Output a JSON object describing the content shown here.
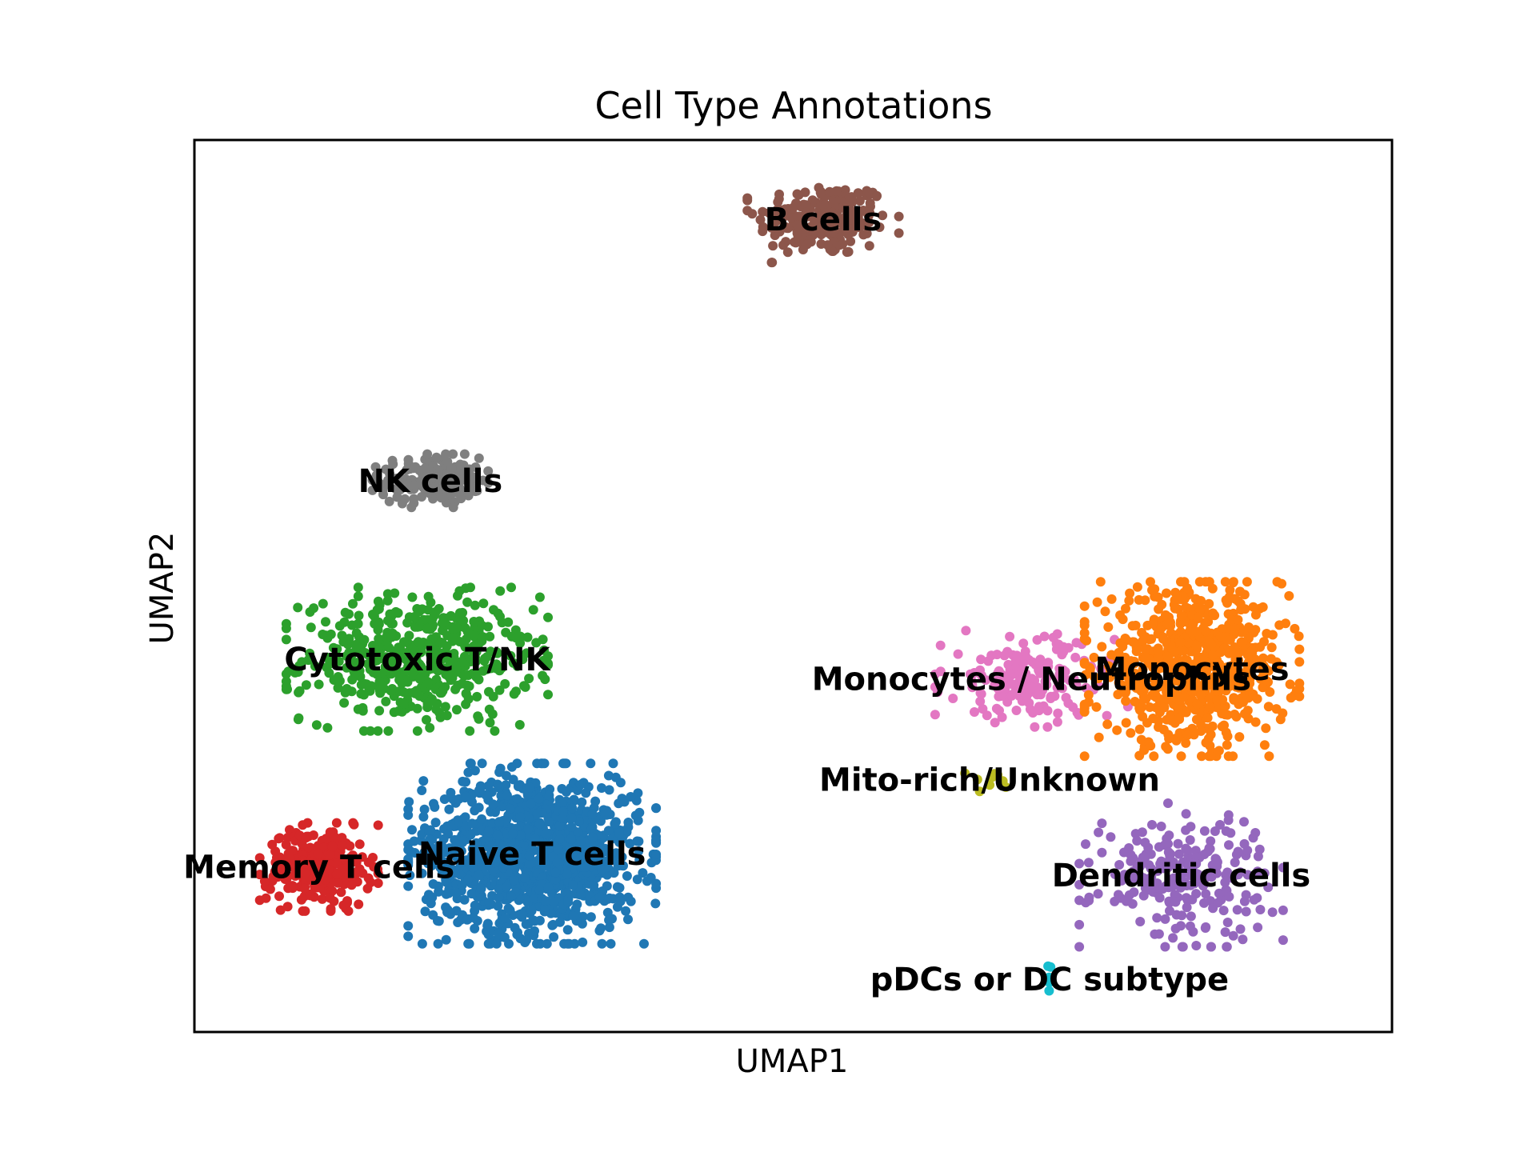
{
  "chart_data": {
    "type": "scatter",
    "title": "Cell Type Annotations",
    "xlabel": "UMAP1",
    "ylabel": "UMAP2",
    "xlim": [
      0,
      100
    ],
    "ylim": [
      0,
      100
    ],
    "grid": false,
    "legend": "on data",
    "series": [
      {
        "name": "B cells",
        "color": "#8c564b",
        "center": [
          52.5,
          91.1
        ],
        "spread": [
          5.5,
          4.2
        ],
        "n": 220
      },
      {
        "name": "NK cells",
        "color": "#7f7f7f",
        "center": [
          19.7,
          61.8
        ],
        "spread": [
          4.2,
          2.6
        ],
        "n": 170
      },
      {
        "name": "Cytotoxic T/NK",
        "color": "#2ca02c",
        "center": [
          18.6,
          41.8
        ],
        "spread": [
          9.5,
          7.0
        ],
        "n": 520
      },
      {
        "name": "Naive T cells",
        "color": "#1f77b4",
        "center": [
          28.2,
          20.0
        ],
        "spread": [
          9.0,
          8.8
        ],
        "n": 1200
      },
      {
        "name": "Memory T cells",
        "color": "#d62728",
        "center": [
          10.4,
          18.5
        ],
        "spread": [
          4.3,
          4.3
        ],
        "n": 260
      },
      {
        "name": "Monocytes / Neutrophils",
        "color": "#e377c2",
        "center": [
          69.9,
          39.6
        ],
        "spread": [
          7.0,
          4.7
        ],
        "n": 190
      },
      {
        "name": "Monocytes",
        "color": "#ff7f0e",
        "center": [
          83.3,
          40.7
        ],
        "spread": [
          7.8,
          8.5
        ],
        "n": 720
      },
      {
        "name": "Mito-rich/Unknown",
        "color": "#bcbd22",
        "center": [
          66.4,
          28.3
        ],
        "spread": [
          1.8,
          1.2
        ],
        "n": 9
      },
      {
        "name": "Dendritic cells",
        "color": "#9467bd",
        "center": [
          82.4,
          17.6
        ],
        "spread": [
          7.4,
          7.0
        ],
        "n": 240
      },
      {
        "name": "pDCs or DC subtype",
        "color": "#17becf",
        "center": [
          71.4,
          5.9
        ],
        "spread": [
          0.4,
          2.0
        ],
        "n": 6
      }
    ]
  }
}
